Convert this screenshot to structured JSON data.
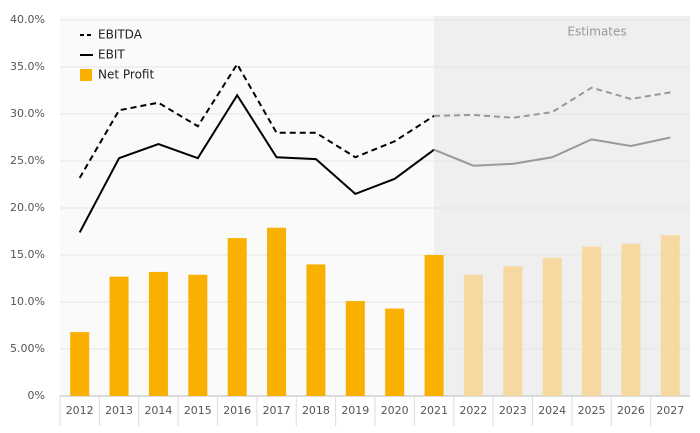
{
  "chart_data": {
    "type": "bar_line",
    "categories": [
      "2012",
      "2013",
      "2014",
      "2015",
      "2016",
      "2017",
      "2018",
      "2019",
      "2020",
      "2021",
      "2022",
      "2023",
      "2024",
      "2025",
      "2026",
      "2027"
    ],
    "series": [
      {
        "name": "EBITDA",
        "kind": "line",
        "dash": true,
        "color": "#000000",
        "estimate_color": "#999999",
        "values": [
          23.2,
          30.4,
          31.2,
          28.7,
          35.3,
          28.0,
          28.0,
          25.4,
          27.1,
          29.8,
          29.9,
          29.6,
          30.2,
          32.8,
          31.6,
          32.3
        ]
      },
      {
        "name": "EBIT",
        "kind": "line",
        "dash": false,
        "color": "#000000",
        "estimate_color": "#999999",
        "values": [
          17.4,
          25.3,
          26.8,
          25.3,
          32.0,
          25.4,
          25.2,
          21.5,
          23.1,
          26.2,
          24.5,
          24.7,
          25.4,
          27.3,
          26.6,
          27.5
        ]
      },
      {
        "name": "Net Profit",
        "kind": "bar",
        "color": "#f9b000",
        "estimate_color": "#f5d9a0",
        "values": [
          6.8,
          12.7,
          13.2,
          12.9,
          16.8,
          17.9,
          14.0,
          10.1,
          9.3,
          15.0,
          12.9,
          13.8,
          14.7,
          15.9,
          16.2,
          17.1
        ]
      }
    ],
    "estimates": {
      "label": "Estimates",
      "from": "2021"
    },
    "ylim": [
      0,
      40
    ],
    "yticks": [
      {
        "value": 0,
        "label": "0%"
      },
      {
        "value": 5,
        "label": "5.00%"
      },
      {
        "value": 10,
        "label": "10.0%"
      },
      {
        "value": 15,
        "label": "15.0%"
      },
      {
        "value": 20,
        "label": "20.0%"
      },
      {
        "value": 25,
        "label": "25.0%"
      },
      {
        "value": 30,
        "label": "30.0%"
      },
      {
        "value": 35,
        "label": "35.0%"
      },
      {
        "value": 40,
        "label": "40.0%"
      }
    ],
    "grid": true,
    "legend": "top-left"
  }
}
